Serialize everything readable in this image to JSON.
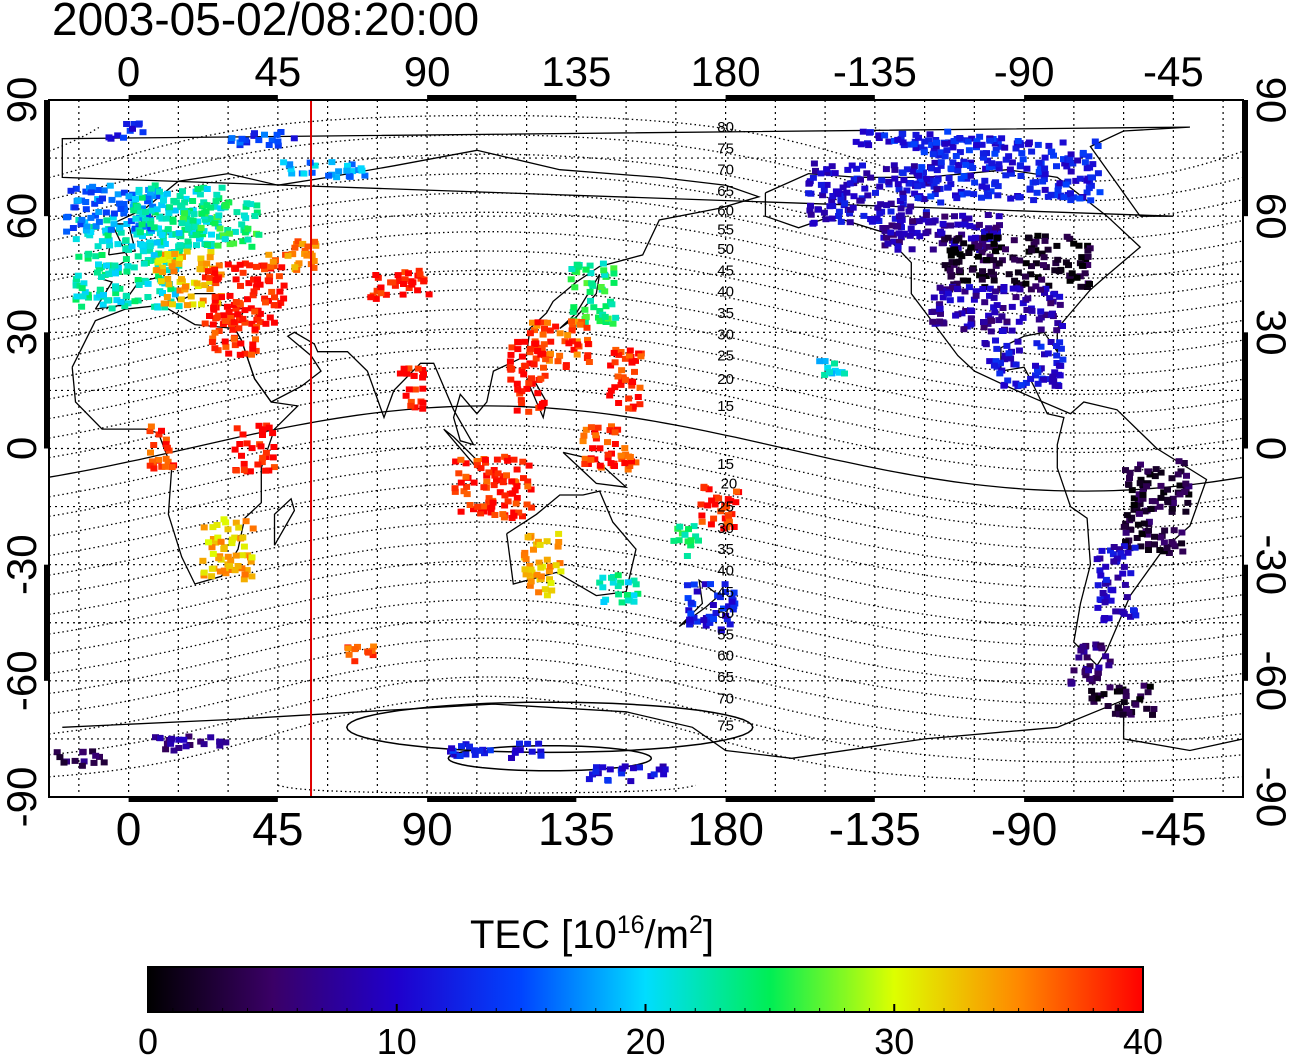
{
  "title": "2003-05-02/08:20:00",
  "map": {
    "lon_ticks_top": [
      "0",
      "45",
      "90",
      "135",
      "180",
      "-135",
      "-90",
      "-45"
    ],
    "lon_ticks_bottom": [
      "0",
      "45",
      "90",
      "135",
      "180",
      "-135",
      "-90",
      "-45"
    ],
    "lat_ticks_left": [
      "90",
      "60",
      "30",
      "0",
      "-30",
      "-60",
      "-90"
    ],
    "lat_ticks_right": [
      "90",
      "60",
      "30",
      "0",
      "-30",
      "-60",
      "-90"
    ],
    "lon_range_east": [
      -24,
      336
    ],
    "lat_range": [
      -90,
      90
    ],
    "terminator_longitude": 55,
    "grid": true,
    "contour_labels": [
      {
        "text": "80",
        "lon": 180,
        "lat": 83
      },
      {
        "text": "75",
        "lon": 180,
        "lat": 77.5
      },
      {
        "text": "70",
        "lon": 180,
        "lat": 72
      },
      {
        "text": "65",
        "lon": 180,
        "lat": 66.5
      },
      {
        "text": "60",
        "lon": 180,
        "lat": 61.5
      },
      {
        "text": "55",
        "lon": 180,
        "lat": 56.5
      },
      {
        "text": "50",
        "lon": 180,
        "lat": 51.5
      },
      {
        "text": "45",
        "lon": 180,
        "lat": 46
      },
      {
        "text": "40",
        "lon": 180,
        "lat": 40.5
      },
      {
        "text": "35",
        "lon": 180,
        "lat": 35
      },
      {
        "text": "30",
        "lon": 180,
        "lat": 29.5
      },
      {
        "text": "25",
        "lon": 180,
        "lat": 24
      },
      {
        "text": "20",
        "lon": 180,
        "lat": 18
      },
      {
        "text": "15",
        "lon": 180,
        "lat": 11
      },
      {
        "text": "15",
        "lon": 180,
        "lat": -4
      },
      {
        "text": "20",
        "lon": 181,
        "lat": -9
      },
      {
        "text": "25",
        "lon": 180,
        "lat": -15
      },
      {
        "text": "30",
        "lon": 180,
        "lat": -20.5
      },
      {
        "text": "35",
        "lon": 180,
        "lat": -26
      },
      {
        "text": "40",
        "lon": 180,
        "lat": -31.5
      },
      {
        "text": "45",
        "lon": 180,
        "lat": -37
      },
      {
        "text": "50",
        "lon": 180,
        "lat": -42.5
      },
      {
        "text": "55",
        "lon": 180,
        "lat": -48
      },
      {
        "text": "60",
        "lon": 180,
        "lat": -53.5
      },
      {
        "text": "65",
        "lon": 180,
        "lat": -59
      },
      {
        "text": "70",
        "lon": 180,
        "lat": -64.5
      },
      {
        "text": "75",
        "lon": 180,
        "lat": -71.5
      }
    ],
    "tec_clusters": [
      {
        "lon": 0,
        "lat": 48,
        "rlon": 16,
        "rlat": 12,
        "v": 22
      },
      {
        "lon": -5,
        "lat": 62,
        "rlon": 14,
        "rlat": 6,
        "v": 16
      },
      {
        "lon": 15,
        "lat": 60,
        "rlon": 14,
        "rlat": 8,
        "v": 22
      },
      {
        "lon": 28,
        "lat": 58,
        "rlon": 12,
        "rlat": 6,
        "v": 24
      },
      {
        "lon": 18,
        "lat": 44,
        "rlon": 10,
        "rlat": 7,
        "v": 33
      },
      {
        "lon": 35,
        "lat": 40,
        "rlon": 12,
        "rlat": 8,
        "v": 40
      },
      {
        "lon": 32,
        "lat": 30,
        "rlon": 7,
        "rlat": 6,
        "v": 39
      },
      {
        "lon": 50,
        "lat": 50,
        "rlon": 8,
        "rlat": 4,
        "v": 35
      },
      {
        "lon": 82,
        "lat": 42,
        "rlon": 9,
        "rlat": 4,
        "v": 40
      },
      {
        "lon": 60,
        "lat": 72,
        "rlon": 14,
        "rlat": 2,
        "v": 18
      },
      {
        "lon": 40,
        "lat": 80,
        "rlon": 10,
        "rlat": 2,
        "v": 14
      },
      {
        "lon": 0,
        "lat": 82,
        "rlon": 6,
        "rlat": 2,
        "v": 12
      },
      {
        "lon": 140,
        "lat": 40,
        "rlon": 7,
        "rlat": 8,
        "v": 24
      },
      {
        "lon": 130,
        "lat": 27,
        "rlon": 9,
        "rlat": 6,
        "v": 37
      },
      {
        "lon": 120,
        "lat": 18,
        "rlon": 6,
        "rlat": 10,
        "v": 40
      },
      {
        "lon": 150,
        "lat": 18,
        "rlon": 5,
        "rlat": 8,
        "v": 39
      },
      {
        "lon": 85,
        "lat": 15,
        "rlon": 4,
        "rlat": 6,
        "v": 40
      },
      {
        "lon": 110,
        "lat": -10,
        "rlon": 12,
        "rlat": 8,
        "v": 39
      },
      {
        "lon": 145,
        "lat": 0,
        "rlon": 8,
        "rlat": 6,
        "v": 38
      },
      {
        "lon": 125,
        "lat": -30,
        "rlon": 6,
        "rlat": 8,
        "v": 33
      },
      {
        "lon": 148,
        "lat": -36,
        "rlon": 6,
        "rlat": 4,
        "v": 22
      },
      {
        "lon": 175,
        "lat": -41,
        "rlon": 8,
        "rlat": 6,
        "v": 12
      },
      {
        "lon": 178,
        "lat": -15,
        "rlon": 6,
        "rlat": 6,
        "v": 39
      },
      {
        "lon": 168,
        "lat": -24,
        "rlon": 4,
        "rlat": 4,
        "v": 24
      },
      {
        "lon": 30,
        "lat": -26,
        "rlon": 8,
        "rlat": 8,
        "v": 33
      },
      {
        "lon": 10,
        "lat": 0,
        "rlon": 4,
        "rlat": 6,
        "v": 38
      },
      {
        "lon": 38,
        "lat": 0,
        "rlon": 6,
        "rlat": 6,
        "v": 40
      },
      {
        "lon": 225,
        "lat": 66,
        "rlon": 20,
        "rlat": 8,
        "v": 10
      },
      {
        "lon": 265,
        "lat": 72,
        "rlon": 28,
        "rlat": 8,
        "v": 12
      },
      {
        "lon": 245,
        "lat": 56,
        "rlon": 18,
        "rlat": 5,
        "v": 8
      },
      {
        "lon": 268,
        "lat": 48,
        "rlon": 22,
        "rlat": 7,
        "v": 2
      },
      {
        "lon": 262,
        "lat": 36,
        "rlon": 20,
        "rlat": 6,
        "v": 8
      },
      {
        "lon": 270,
        "lat": 22,
        "rlon": 12,
        "rlat": 6,
        "v": 11
      },
      {
        "lon": 240,
        "lat": 80,
        "rlon": 24,
        "rlat": 2,
        "v": 12
      },
      {
        "lon": 212,
        "lat": 20,
        "rlon": 4,
        "rlat": 3,
        "v": 20
      },
      {
        "lon": 310,
        "lat": -15,
        "rlon": 10,
        "rlat": 12,
        "v": 3
      },
      {
        "lon": 298,
        "lat": -35,
        "rlon": 6,
        "rlat": 10,
        "v": 10
      },
      {
        "lon": 290,
        "lat": -55,
        "rlon": 6,
        "rlat": 6,
        "v": 6
      },
      {
        "lon": 300,
        "lat": -65,
        "rlon": 10,
        "rlat": 4,
        "v": 2
      },
      {
        "lon": 150,
        "lat": -84,
        "rlon": 12,
        "rlat": 2,
        "v": 11
      },
      {
        "lon": 110,
        "lat": -78,
        "rlon": 15,
        "rlat": 2,
        "v": 12
      },
      {
        "lon": 20,
        "lat": -76,
        "rlon": 12,
        "rlat": 2,
        "v": 7
      },
      {
        "lon": -15,
        "lat": -80,
        "rlon": 8,
        "rlat": 2,
        "v": 4
      },
      {
        "lon": 70,
        "lat": -53,
        "rlon": 6,
        "rlat": 2,
        "v": 37
      }
    ]
  },
  "colorbar": {
    "title_main": "TEC  [10",
    "title_sup1": "16",
    "title_mid": "/m",
    "title_sup2": "2",
    "title_end": "]",
    "min": 0,
    "max": 40,
    "ticks": [
      "0",
      "10",
      "20",
      "30",
      "40"
    ],
    "stops": [
      "#000000",
      "#3a0066",
      "#1f00cc",
      "#0044ff",
      "#00ddff",
      "#00ee55",
      "#ddff00",
      "#ff8800",
      "#ff0000"
    ]
  }
}
